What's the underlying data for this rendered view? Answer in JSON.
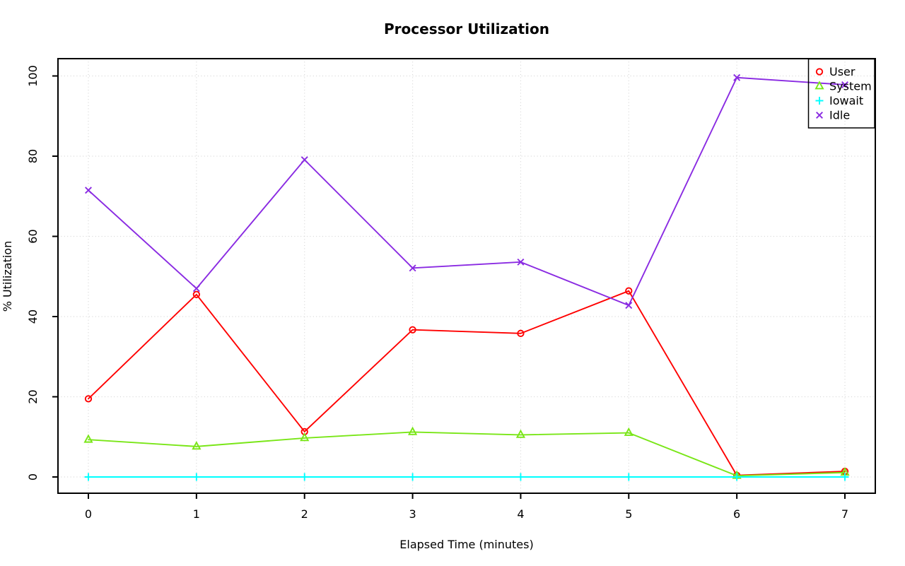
{
  "chart_data": {
    "type": "line",
    "title": "Processor Utilization",
    "xlabel": "Elapsed Time (minutes)",
    "ylabel": "% Utilization",
    "x": [
      0,
      1,
      2,
      3,
      4,
      5,
      6,
      7
    ],
    "xticks": [
      0,
      1,
      2,
      3,
      4,
      5,
      6,
      7
    ],
    "yticks": [
      0,
      20,
      40,
      60,
      80,
      100
    ],
    "xlim": [
      -0.28,
      7.28
    ],
    "ylim": [
      -4.1,
      104.1
    ],
    "grid": "dotted-gray-at-every-tick",
    "grid_color": "#d6d6d6",
    "background_color": "#ffffff",
    "box_color": "#000000",
    "legend_position": "topright",
    "legend_transparent": true,
    "series": [
      {
        "name": "User",
        "color": "#ff0000",
        "marker": "open-circle",
        "values": [
          19.5,
          45.5,
          11.3,
          36.7,
          35.8,
          46.4,
          0.4,
          1.4
        ]
      },
      {
        "name": "System",
        "color": "#79e617",
        "marker": "open-triangle",
        "values": [
          9.3,
          7.6,
          9.7,
          11.2,
          10.5,
          11.0,
          0.3,
          1.1
        ]
      },
      {
        "name": "Iowait",
        "color": "#00ffff",
        "marker": "plus",
        "values": [
          0,
          0,
          0,
          0,
          0,
          0,
          0,
          0
        ]
      },
      {
        "name": "Idle",
        "color": "#8a2be2",
        "marker": "x",
        "values": [
          71.5,
          47.0,
          79.1,
          52.1,
          53.6,
          42.8,
          99.6,
          97.8
        ]
      }
    ]
  }
}
